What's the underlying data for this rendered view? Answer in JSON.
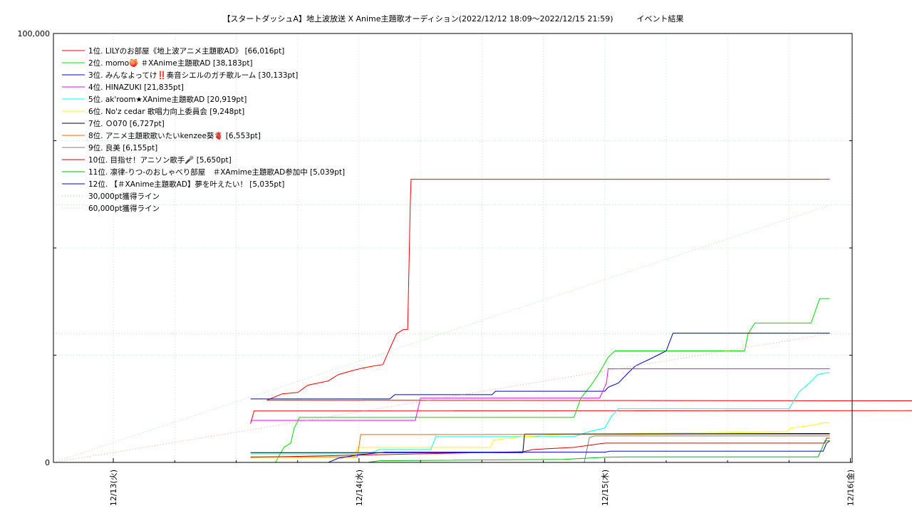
{
  "chart_data": {
    "type": "line",
    "title": "【スタートダッシュA】地上波放送 X Anime主題歌オーディション(2022/12/12 18:09〜2022/12/15 21:59)　　　イベント結果",
    "xlabel": "",
    "ylabel": "",
    "ylim": [
      0,
      100000
    ],
    "xlim": [
      "2022-12-12 18:09",
      "2022-12-16 00:10"
    ],
    "y_tick_labels": [
      "0",
      "100,000"
    ],
    "x_tick_labels": [
      "12/13(火)",
      "12/14(水)",
      "12/15(木)",
      "12/16(金)"
    ],
    "x_ticks": [
      "2022-12-13 00:00",
      "2022-12-14 00:00",
      "2022-12-15 00:00",
      "2022-12-16 00:00"
    ],
    "grid": true,
    "legend_position": "top-left",
    "series": [
      {
        "name": "1位. LILYのお部屋《地上波アニメ主題歌AD》 [66,016pt]",
        "color": "#ff0000",
        "style": "solid",
        "points": [
          [
            "2022-12-13 13:24",
            9000
          ],
          [
            "2022-12-13 13:45",
            12000
          ],
          [
            "2022-13-13 14:00",
            13000
          ],
          [
            "2022-12-13 15:00",
            14500
          ],
          [
            "2022-12-13 16:30",
            16000
          ],
          [
            "2022-12-13 18:00",
            16300
          ],
          [
            "2022-12-13 19:00",
            18000
          ],
          [
            "2022-12-13 21:00",
            19000
          ],
          [
            "2022-12-13 22:00",
            20500
          ],
          [
            "2022-12-13 23:30",
            21500
          ],
          [
            "2022-12-14 00:20",
            22000
          ],
          [
            "2022-12-14 01:30",
            22500
          ],
          [
            "2022-12-14 02:20",
            22800
          ],
          [
            "2022-12-14 03:00",
            26500
          ],
          [
            "2022-12-14 03:40",
            30000
          ],
          [
            "2022-12-14 04:20",
            31000
          ],
          [
            "2022-12-14 04:45",
            31000
          ],
          [
            "2022-12-14 05:00",
            60000
          ],
          [
            "2022-12-14 05:05",
            66016
          ],
          [
            "2022-12-15 21:59",
            66016
          ]
        ]
      },
      {
        "name": "2位. momo🍑 ＃XAnime主題歌AD [38,183pt]",
        "color": "#00dd00",
        "style": "solid",
        "points": [
          [
            "2022-12-13 13:24",
            0
          ],
          [
            "2022-12-13 15:50",
            0
          ],
          [
            "2022-12-13 16:40",
            3500
          ],
          [
            "2022-12-13 17:20",
            4500
          ],
          [
            "2022-12-13 17:40",
            8000
          ],
          [
            "2022-12-13 18:00",
            9500
          ],
          [
            "2022-12-13 18:10",
            10500
          ],
          [
            "2022-12-14 21:00",
            10500
          ],
          [
            "2022-12-14 21:40",
            15000
          ],
          [
            "2022-12-14 22:40",
            18000
          ],
          [
            "2022-12-14 23:30",
            21000
          ],
          [
            "2022-12-15 00:20",
            24500
          ],
          [
            "2022-12-15 01:00",
            26000
          ],
          [
            "2022-12-15 13:40",
            26000
          ],
          [
            "2022-12-15 14:00",
            30000
          ],
          [
            "2022-12-15 14:40",
            32500
          ],
          [
            "2022-12-15 20:10",
            32500
          ],
          [
            "2022-12-15 20:40",
            36000
          ],
          [
            "2022-12-15 21:00",
            38183
          ],
          [
            "2022-12-15 21:59",
            38183
          ]
        ]
      },
      {
        "name": "3位. みんなよってけ‼️奏音シエルのガチ歌ルーム [30,133pt]",
        "color": "#0000cc",
        "style": "solid",
        "points": [
          [
            "2022-12-13 13:24",
            14800
          ],
          [
            "2022-12-14 03:00",
            14800
          ],
          [
            "2022-12-14 03:30",
            15800
          ],
          [
            "2022-12-14 13:00",
            15800
          ],
          [
            "2022-12-14 13:20",
            16600
          ],
          [
            "2022-12-15 00:00",
            16600
          ],
          [
            "2022-12-15 00:20",
            17500
          ],
          [
            "2022-12-15 01:20",
            18500
          ],
          [
            "2022-12-15 02:20",
            21000
          ],
          [
            "2022-12-15 03:00",
            22500
          ],
          [
            "2022-12-15 04:20",
            24000
          ],
          [
            "2022-12-15 06:00",
            26000
          ],
          [
            "2022-12-15 06:40",
            30133
          ],
          [
            "2022-12-15 21:59",
            30133
          ]
        ]
      },
      {
        "name": "4位. HINAZUKI [21,835pt]",
        "color": "#ff00ff",
        "style": "solid",
        "points": [
          [
            "2022-12-13 13:24",
            9800
          ],
          [
            "2022-12-14 05:30",
            9800
          ],
          [
            "2022-12-14 06:00",
            15000
          ],
          [
            "2022-12-14 23:30",
            15000
          ],
          [
            "2022-12-15 00:10",
            18500
          ],
          [
            "2022-12-15 00:20",
            21835
          ],
          [
            "2022-12-15 21:59",
            21835
          ]
        ]
      },
      {
        "name": "5位. ak'room★XAnime主題歌AD [20,919pt]",
        "color": "#00ffff",
        "style": "solid",
        "points": [
          [
            "2022-12-13 13:24",
            2000
          ],
          [
            "2022-12-14 01:00",
            2000
          ],
          [
            "2022-12-14 02:00",
            3000
          ],
          [
            "2022-12-14 07:00",
            3000
          ],
          [
            "2022-12-14 07:30",
            6000
          ],
          [
            "2022-12-14 21:00",
            6000
          ],
          [
            "2022-12-14 22:30",
            7200
          ],
          [
            "2022-12-15 00:00",
            8000
          ],
          [
            "2022-12-15 00:40",
            10800
          ],
          [
            "2022-12-15 01:20",
            12500
          ],
          [
            "2022-12-15 18:00",
            12500
          ],
          [
            "2022-12-15 19:00",
            16500
          ],
          [
            "2022-12-15 20:00",
            18500
          ],
          [
            "2022-12-15 20:50",
            20500
          ],
          [
            "2022-12-15 21:40",
            20919
          ],
          [
            "2022-12-15 21:59",
            20919
          ]
        ]
      },
      {
        "name": "6位. No'z cedar 歌唱力向上委員会 [9,248pt]",
        "color": "#ffff00",
        "style": "solid",
        "points": [
          [
            "2022-12-13 13:24",
            1000
          ],
          [
            "2022-12-13 23:30",
            1000
          ],
          [
            "2022-12-13 23:50",
            3500
          ],
          [
            "2022-12-14 12:50",
            3500
          ],
          [
            "2022-12-14 13:10",
            5200
          ],
          [
            "2022-12-14 16:00",
            6000
          ],
          [
            "2022-12-14 20:00",
            6500
          ],
          [
            "2022-12-15 11:00",
            7000
          ],
          [
            "2022-12-15 17:50",
            7200
          ],
          [
            "2022-12-15 18:10",
            8000
          ],
          [
            "2022-12-15 19:50",
            8500
          ],
          [
            "2022-12-15 21:30",
            9248
          ],
          [
            "2022-12-15 21:59",
            9248
          ]
        ]
      },
      {
        "name": "7位. Ｏ070 [6,727pt]",
        "color": "#000000",
        "style": "solid",
        "points": [
          [
            "2022-12-13 13:24",
            2300
          ],
          [
            "2022-12-14 16:00",
            2300
          ],
          [
            "2022-12-14 16:10",
            6600
          ],
          [
            "2022-12-15 21:59",
            6727
          ]
        ]
      },
      {
        "name": "8位. アニメ主題歌歌いたいkenzee葵🫀 [6,553pt]",
        "color": "#ff6600",
        "style": "solid",
        "points": [
          [
            "2022-12-13 13:24",
            1300
          ],
          [
            "2022-12-13 23:50",
            1300
          ],
          [
            "2022-12-14 00:10",
            6500
          ],
          [
            "2022-12-15 21:59",
            6553
          ]
        ]
      },
      {
        "name": "9位. 良美 [6,155pt]",
        "color": "#808080",
        "style": "solid",
        "points": [
          [
            "2022-12-13 13:24",
            0
          ],
          [
            "2022-12-14 22:00",
            0
          ],
          [
            "2022-12-14 22:30",
            5800
          ],
          [
            "2022-12-14 23:00",
            6155
          ],
          [
            "2022-12-15 21:59",
            6155
          ]
        ]
      },
      {
        "name": "10位. 目指せ！アニソン歌手🎤 [5,650pt]",
        "color": "#dd0000",
        "style": "solid",
        "points": [
          [
            "2022-12-13 13:24",
            1200
          ],
          [
            "2022-12-14 16:00",
            2500
          ],
          [
            "2022-12-14 17:00",
            3000
          ],
          [
            "2022-12-14 21:00",
            3500
          ],
          [
            "2022-12-15 00:00",
            4500
          ],
          [
            "2022-12-15 21:30",
            4500
          ],
          [
            "2022-12-15 21:40",
            5650
          ],
          [
            "2022-12-15 21:59",
            5650
          ]
        ]
      },
      {
        "name": "11位. 凛律-りつ-のおしゃべり部屋　＃XAmime主題歌AD参加中 [5,039pt]",
        "color": "#00bb00",
        "style": "solid",
        "points": [
          [
            "2022-12-13 13:24",
            0
          ],
          [
            "2022-12-14 00:50",
            0
          ],
          [
            "2022-12-14 02:00",
            400
          ],
          [
            "2022-12-14 20:00",
            700
          ],
          [
            "2022-12-15 00:00",
            1200
          ],
          [
            "2022-12-15 02:00",
            1300
          ],
          [
            "2022-12-15 20:50",
            1300
          ],
          [
            "2022-12-15 21:10",
            3000
          ],
          [
            "2022-12-15 21:30",
            5039
          ],
          [
            "2022-12-15 21:59",
            5039
          ]
        ]
      },
      {
        "name": "12位. 【＃XAnime主題歌AD】夢を叶えたい！ [5,035pt]",
        "color": "#0000ff",
        "style": "solid",
        "points": [
          [
            "2022-12-13 13:24",
            0
          ],
          [
            "2022-12-13 21:00",
            0
          ],
          [
            "2022-12-13 22:00",
            1000
          ],
          [
            "2022-12-14 00:00",
            1800
          ],
          [
            "2022-12-14 02:30",
            2400
          ],
          [
            "2022-12-15 00:00",
            2400
          ],
          [
            "2022-12-15 00:30",
            2600
          ],
          [
            "2022-12-15 21:20",
            2600
          ],
          [
            "2022-12-15 21:40",
            4500
          ],
          [
            "2022-12-15 21:59",
            5035
          ]
        ]
      },
      {
        "name": "30,000pt獲得ライン",
        "color": "#ff9999",
        "style": "dotted",
        "points": [
          [
            "2022-12-12 18:09",
            0
          ],
          [
            "2022-12-15 21:59",
            30000
          ]
        ]
      },
      {
        "name": "60,000pt獲得ライン",
        "color": "#99ee99",
        "style": "dotted",
        "points": [
          [
            "2022-12-12 18:09",
            0
          ],
          [
            "2022-12-15 21:59",
            60000
          ]
        ]
      }
    ],
    "reference_lines": [
      {
        "y": 30000,
        "color": "#99ee99",
        "style": "dotted"
      },
      {
        "y": 60000,
        "color": "#99ee99",
        "style": "dotted"
      }
    ]
  }
}
